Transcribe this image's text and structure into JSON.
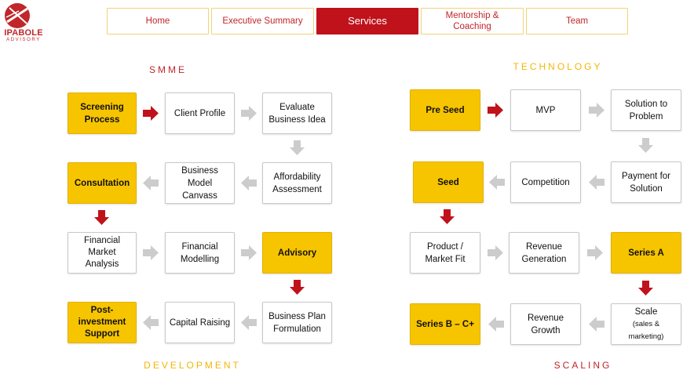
{
  "logo": {
    "name": "IPABOLE",
    "tagline": "ADVISORY"
  },
  "nav": {
    "home": "Home",
    "executive_summary": "Executive Summary",
    "services": "Services",
    "mentorship_line1": "Mentorship &",
    "mentorship_line2": "Coaching",
    "team": "Team"
  },
  "labels": {
    "smme": "SMME",
    "technology": "TECHNOLOGY",
    "development": "DEVELOPMENT",
    "scaling": "SCALING"
  },
  "smme": {
    "screening_l1": "Screening",
    "screening_l2": "Process",
    "client_profile": "Client Profile",
    "evaluate_l1": "Evaluate",
    "evaluate_l2": "Business Idea",
    "consultation": "Consultation",
    "bmc_l1": "Business",
    "bmc_l2": "Model Canvass",
    "afford_l1": "Affordability",
    "afford_l2": "Assessment",
    "fma_l1": "Financial",
    "fma_l2": "Market",
    "fma_l3": "Analysis",
    "fm_l1": "Financial",
    "fm_l2": "Modelling",
    "advisory": "Advisory",
    "pis_l1": "Post-",
    "pis_l2": "investment",
    "pis_l3": "Support",
    "capital_raising": "Capital Raising",
    "bpf_l1": "Business Plan",
    "bpf_l2": "Formulation"
  },
  "tech": {
    "pre_seed": "Pre Seed",
    "mvp": "MVP",
    "stp_l1": "Solution to",
    "stp_l2": "Problem",
    "seed": "Seed",
    "competition": "Competition",
    "pfs_l1": "Payment for",
    "pfs_l2": "Solution",
    "pmf_l1": "Product /",
    "pmf_l2": "Market Fit",
    "rg_l1": "Revenue",
    "rg_l2": "Generation",
    "series_a": "Series A",
    "series_bc": "Series B – C+",
    "rgr_l1": "Revenue",
    "rgr_l2": "Growth",
    "scale_l1": "Scale",
    "scale_l2": "(sales & marketing)"
  },
  "colors": {
    "brand_red": "#c0121b",
    "gold": "#f7c400",
    "arrow_grey": "#cccccc"
  }
}
